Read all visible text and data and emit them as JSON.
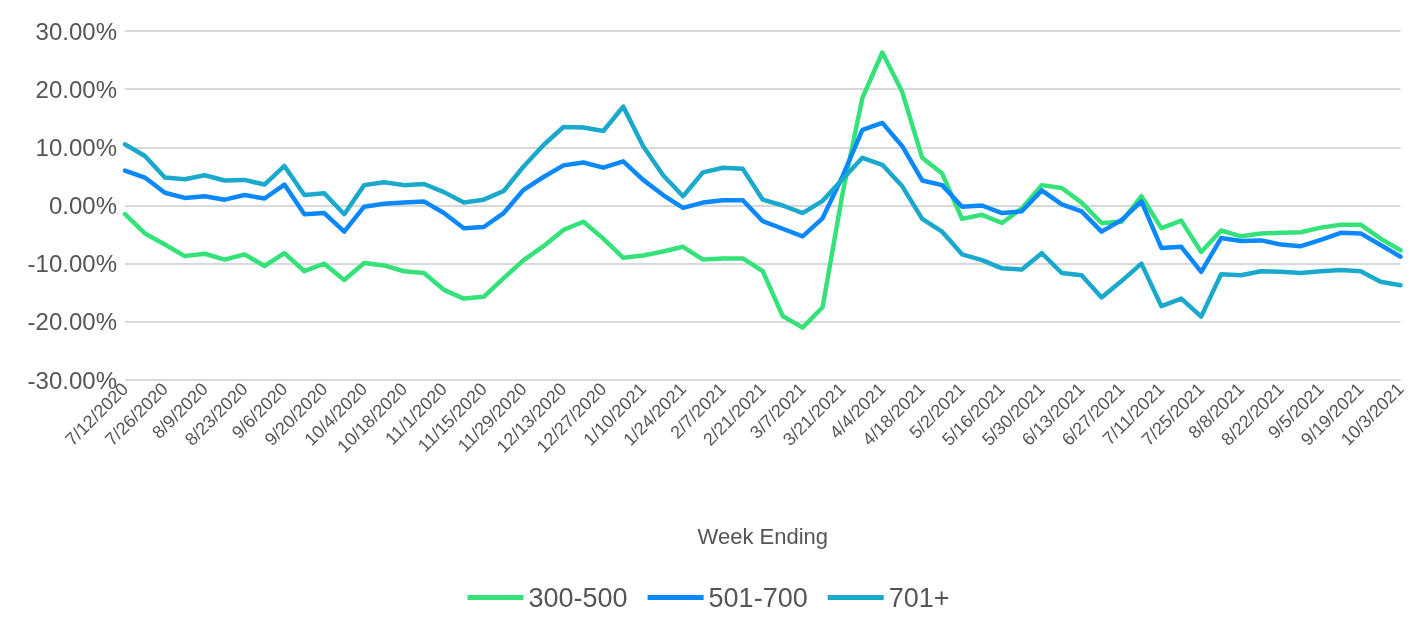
{
  "chart_data": {
    "type": "line",
    "xlabel": "Week Ending",
    "categories": [
      "7/12/2020",
      null,
      "7/26/2020",
      null,
      "8/9/2020",
      null,
      "8/23/2020",
      null,
      "9/6/2020",
      null,
      "9/20/2020",
      null,
      "10/4/2020",
      null,
      "10/18/2020",
      null,
      "11/1/2020",
      null,
      "11/15/2020",
      null,
      "11/29/2020",
      null,
      "12/13/2020",
      null,
      "12/27/2020",
      null,
      "1/10/2021",
      null,
      "1/24/2021",
      null,
      "2/7/2021",
      null,
      "2/21/2021",
      null,
      "3/7/2021",
      null,
      "3/21/2021",
      null,
      "4/4/2021",
      null,
      "4/18/2021",
      null,
      "5/2/2021",
      null,
      "5/16/2021",
      null,
      "5/30/2021",
      null,
      "6/13/2021",
      null,
      "6/27/2021",
      null,
      "7/11/2021",
      null,
      "7/25/2021",
      null,
      "8/8/2021",
      null,
      "8/22/2021",
      null,
      "9/5/2021",
      null,
      "9/19/2021",
      null,
      "10/3/2021"
    ],
    "series": [
      {
        "name": "300-500",
        "color": "#35e27a",
        "values": [
          -1.5,
          -4.8,
          -6.7,
          -8.7,
          -8.3,
          -9.3,
          -8.4,
          -10.4,
          -8.2,
          -11.3,
          -10,
          -12.8,
          -9.9,
          -10.3,
          -11.3,
          -11.6,
          -14.5,
          -16,
          -15.7,
          -12.5,
          -9.4,
          -7,
          -4.2,
          -2.8,
          -5.7,
          -9,
          -8.6,
          -7.9,
          -7.1,
          -9.3,
          -9.1,
          -9.1,
          -11.3,
          -19,
          -21,
          -17.5,
          2,
          18.5,
          26.3,
          19.5,
          8.2,
          5.5,
          -2.3,
          -1.6,
          -3,
          -0.5,
          3.5,
          3,
          0.5,
          -3,
          -2.8,
          1.6,
          -3.9,
          -2.6,
          -8,
          -4.3,
          -5.3,
          -4.8,
          -4.7,
          -4.6,
          -3.8,
          -3.3,
          -3.3,
          -5.7,
          -7.7
        ]
      },
      {
        "name": "501-700",
        "color": "#0a88fc",
        "values": [
          6,
          4.8,
          2.2,
          1.3,
          1.6,
          1,
          1.8,
          1.2,
          3.6,
          -1.5,
          -1.3,
          -4.5,
          -0.2,
          0.3,
          0.5,
          0.7,
          -1.3,
          -3.9,
          -3.7,
          -1.3,
          2.7,
          4.9,
          6.9,
          7.4,
          6.5,
          7.6,
          4.4,
          1.8,
          -0.4,
          0.5,
          0.9,
          0.9,
          -2.7,
          -4,
          -5.3,
          -2.2,
          5,
          13,
          14.2,
          10.2,
          4.3,
          3.5,
          -0.2,
          0,
          -1.3,
          -1,
          2.6,
          0.2,
          -1,
          -4.5,
          -2.5,
          0.7,
          -7.3,
          -7.1,
          -11.4,
          -5.6,
          -6.1,
          -6,
          -6.7,
          -7,
          -5.9,
          -4.7,
          -4.8,
          -6.8,
          -8.8
        ]
      },
      {
        "name": "701+",
        "color": "#1aa9cc",
        "values": [
          10.5,
          8.5,
          4.8,
          4.5,
          5.2,
          4.3,
          4.4,
          3.6,
          6.8,
          1.8,
          2.1,
          -1.5,
          3.5,
          4,
          3.5,
          3.7,
          2.3,
          0.5,
          1,
          2.5,
          6.7,
          10.4,
          13.5,
          13.4,
          12.8,
          17,
          10.2,
          5.2,
          1.6,
          5.7,
          6.5,
          6.3,
          1,
          0,
          -1.3,
          0.8,
          4.5,
          8.2,
          7,
          3.3,
          -2.3,
          -4.5,
          -8.4,
          -9.4,
          -10.8,
          -11,
          -8.2,
          -11.6,
          -12,
          -15.8,
          -13,
          -10,
          -17.3,
          -16,
          -19.1,
          -11.8,
          -12,
          -11.3,
          -11.4,
          -11.6,
          -11.3,
          -11.1,
          -11.3,
          -13.1,
          -13.7
        ]
      }
    ],
    "ylim": [
      -30,
      30
    ],
    "yticks": [
      {
        "value": -30,
        "label": "-30.00%"
      },
      {
        "value": -20,
        "label": "-20.00%"
      },
      {
        "value": -10,
        "label": "-10.00%"
      },
      {
        "value": 0,
        "label": "0.00%"
      },
      {
        "value": 10,
        "label": "10.00%"
      },
      {
        "value": 20,
        "label": "20.00%"
      },
      {
        "value": 30,
        "label": "30.00%"
      }
    ],
    "grid": "y",
    "legend": "bottom",
    "marker": "none",
    "line_style": "solid"
  }
}
